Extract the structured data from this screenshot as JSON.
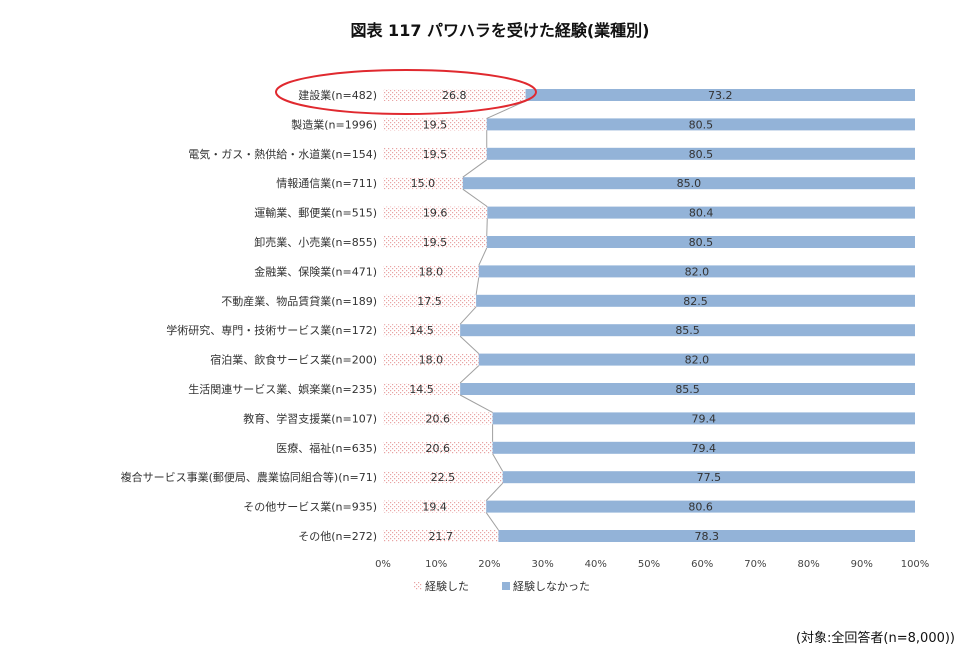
{
  "title": "図表 117 パワハラを受けた経験(業種別)",
  "note": "(対象:全回答者(n=8,000))",
  "colors": {
    "experienced_fill": "#f2d6d6",
    "experienced_pattern": "#e8a3a3",
    "not_experienced": "#93b3d8",
    "highlight_ring": "#e0292f",
    "connector": "#a0a0a0"
  },
  "highlight_category": "建設業(n=482)",
  "chart_data": {
    "type": "bar",
    "orientation": "horizontal",
    "stacked": "percent",
    "categories": [
      "建設業(n=482)",
      "製造業(n=1996)",
      "電気・ガス・熱供給・水道業(n=154)",
      "情報通信業(n=711)",
      "運輸業、郵便業(n=515)",
      "卸売業、小売業(n=855)",
      "金融業、保険業(n=471)",
      "不動産業、物品賃貸業(n=189)",
      "学術研究、専門・技術サービス業(n=172)",
      "宿泊業、飲食サービス業(n=200)",
      "生活関連サービス業、娯楽業(n=235)",
      "教育、学習支援業(n=107)",
      "医療、福祉(n=635)",
      "複合サービス事業(郵便局、農業協同組合等)(n=71)",
      "その他サービス業(n=935)",
      "その他(n=272)"
    ],
    "series": [
      {
        "name": "経験した",
        "values": [
          26.8,
          19.5,
          19.5,
          15.0,
          19.6,
          19.5,
          18.0,
          17.5,
          14.5,
          18.0,
          14.5,
          20.6,
          20.6,
          22.5,
          19.4,
          21.7
        ]
      },
      {
        "name": "経験しなかった",
        "values": [
          73.2,
          80.5,
          80.5,
          85.0,
          80.4,
          80.5,
          82.0,
          82.5,
          85.5,
          82.0,
          85.5,
          79.4,
          79.4,
          77.5,
          80.6,
          78.3
        ]
      }
    ],
    "x_ticks": [
      "0%",
      "10%",
      "20%",
      "30%",
      "40%",
      "50%",
      "60%",
      "70%",
      "80%",
      "90%",
      "100%"
    ],
    "xlim": [
      0,
      100
    ],
    "legend_position": "bottom",
    "series_lines": true
  }
}
